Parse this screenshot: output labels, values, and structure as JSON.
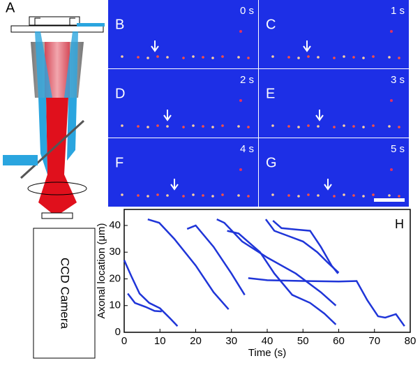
{
  "figure": {
    "panel_labels": [
      "A",
      "B",
      "C",
      "D",
      "E",
      "F",
      "G",
      "H"
    ],
    "time_labels": [
      "0 s",
      "1 s",
      "2 s",
      "3 s",
      "4 s",
      "5 s"
    ],
    "camera_label": "CCD Camera"
  },
  "chart_data": {
    "type": "line",
    "x_label": "Time (s)",
    "y_label": "Axonal location (μm)",
    "xlim": [
      0,
      80
    ],
    "ylim": [
      0,
      46
    ],
    "xticks": [
      0,
      10,
      20,
      30,
      40,
      50,
      60,
      70,
      80
    ],
    "yticks": [
      0,
      10,
      20,
      30,
      40
    ],
    "series": [
      {
        "color": "#1f35d8",
        "x": [
          0,
          2,
          4.3,
          7,
          10,
          13,
          14.9
        ],
        "values": [
          27,
          21,
          14.5,
          11,
          9,
          5,
          2.3
        ]
      },
      {
        "color": "#1f35d8",
        "x": [
          1,
          3,
          6,
          8.5,
          10.5
        ],
        "values": [
          14.5,
          11,
          9.5,
          8,
          7.8
        ]
      },
      {
        "color": "#1f35d8",
        "x": [
          6.6,
          9.8,
          14,
          20,
          25,
          29.2
        ],
        "values": [
          42.3,
          41,
          35,
          25,
          15,
          8.6
        ]
      },
      {
        "color": "#1f35d8",
        "x": [
          17.6,
          20,
          25,
          30,
          33.7
        ],
        "values": [
          38.7,
          40,
          32,
          22,
          14
        ]
      },
      {
        "color": "#1f35d8",
        "x": [
          25.9,
          28,
          33,
          40,
          48,
          55,
          59.2
        ],
        "values": [
          42.3,
          41,
          34,
          28,
          22,
          15,
          10
        ]
      },
      {
        "color": "#1f35d8",
        "x": [
          28.8,
          32,
          38,
          42,
          47,
          52,
          56,
          59.2
        ],
        "values": [
          38,
          37,
          30,
          22,
          14,
          11,
          7,
          2.9
        ]
      },
      {
        "color": "#1f35d8",
        "x": [
          39.6,
          42,
          46,
          50,
          54,
          57,
          60
        ],
        "values": [
          42.3,
          38,
          36,
          34,
          30,
          26,
          22.3
        ]
      },
      {
        "color": "#1f35d8",
        "x": [
          41.6,
          44,
          48,
          52,
          55,
          58,
          59.8
        ],
        "values": [
          41.8,
          39,
          38.5,
          38,
          32,
          25,
          22
        ]
      },
      {
        "color": "#1f35d8",
        "x": [
          34.7,
          40,
          50,
          60,
          65,
          68,
          71,
          73,
          76,
          78.4
        ],
        "values": [
          20.3,
          19.5,
          19.2,
          19,
          19.2,
          12,
          6,
          5.5,
          6.8,
          2.3
        ]
      }
    ]
  }
}
